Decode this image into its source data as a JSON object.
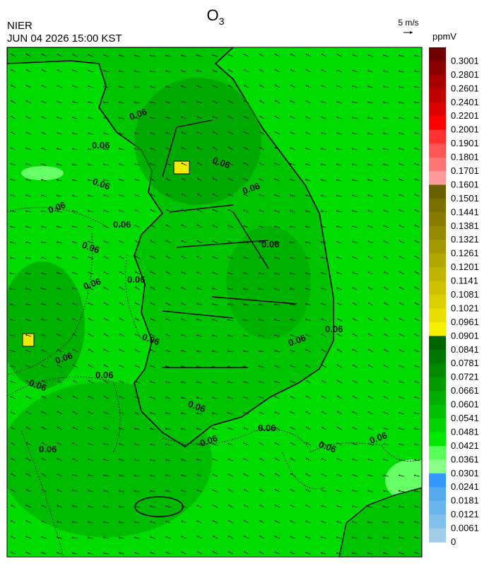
{
  "header": {
    "title": {
      "base": "O",
      "sub": "3"
    },
    "agency": "NIER",
    "datetime": "JUN 04 2026 15:00 KST",
    "wind_scale": "5 m/s"
  },
  "colorbar": {
    "unit": "ppmV",
    "labels": [
      "0.3001",
      "0.2801",
      "0.2601",
      "0.2401",
      "0.2201",
      "0.2001",
      "0.1901",
      "0.1801",
      "0.1701",
      "0.1601",
      "0.1501",
      "0.1441",
      "0.1381",
      "0.1321",
      "0.1261",
      "0.1201",
      "0.1141",
      "0.1081",
      "0.1021",
      "0.0961",
      "0.0901",
      "0.0841",
      "0.0781",
      "0.0721",
      "0.0661",
      "0.0601",
      "0.0541",
      "0.0481",
      "0.0421",
      "0.0361",
      "0.0301",
      "0.0241",
      "0.0181",
      "0.0121",
      "0.0061",
      "0"
    ],
    "colors": [
      "#6e0000",
      "#8c0000",
      "#a80000",
      "#c00000",
      "#dc0000",
      "#ff0000",
      "#ff3030",
      "#ff5555",
      "#ff7373",
      "#ff9a9a",
      "#6b6000",
      "#7a6e00",
      "#887c00",
      "#968a00",
      "#a49800",
      "#b2a600",
      "#c0b400",
      "#cec200",
      "#dcd000",
      "#e8de00",
      "#f5f000",
      "#006400",
      "#007800",
      "#008a00",
      "#009c00",
      "#00ae00",
      "#00c000",
      "#00d400",
      "#00e800",
      "#55ff55",
      "#88ff88",
      "#3399ff",
      "#55aaee",
      "#6ab4ee",
      "#80c0ea",
      "#a0cde8"
    ]
  },
  "map": {
    "contour_labels": [
      "0.06",
      "0.06",
      "0.06",
      "0.06",
      "0.06",
      "0.06",
      "0.06",
      "0.06",
      "0.06",
      "0.06",
      "0.06",
      "0.06",
      "0.06",
      "0.06",
      "0.06",
      "0.06",
      "0.06",
      "0.06",
      "0.06",
      "0.06",
      "0.06",
      "0.06",
      "0.06"
    ]
  }
}
